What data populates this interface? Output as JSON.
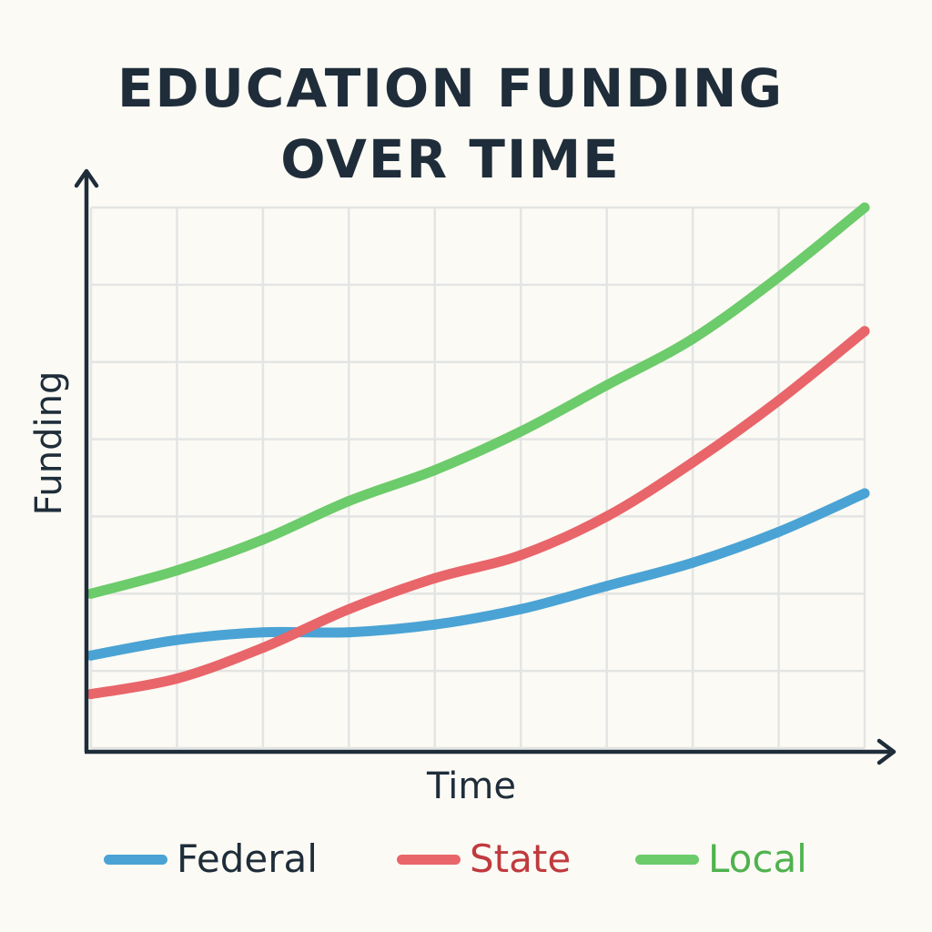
{
  "chart_data": {
    "type": "line",
    "title_lines": [
      "EDUCATION FUNDING",
      "OVER TIME"
    ],
    "xlabel": "Time",
    "ylabel": "Funding",
    "grid": true,
    "legend_position": "bottom",
    "x": [
      0,
      1,
      2,
      3,
      4,
      5,
      6,
      7,
      8,
      9
    ],
    "xlim": [
      0,
      9
    ],
    "ylim": [
      0,
      7
    ],
    "series": [
      {
        "name": "Federal",
        "color": "#4aa3d4",
        "label_color": "#1f2d3a",
        "values": [
          1.2,
          1.4,
          1.5,
          1.5,
          1.6,
          1.8,
          2.1,
          2.4,
          2.8,
          3.3
        ]
      },
      {
        "name": "State",
        "color": "#e8656a",
        "label_color": "#c03a3e",
        "values": [
          0.7,
          0.9,
          1.3,
          1.8,
          2.2,
          2.5,
          3.0,
          3.7,
          4.5,
          5.4
        ]
      },
      {
        "name": "Local",
        "color": "#6ccb6a",
        "label_color": "#4fb24e",
        "values": [
          2.0,
          2.3,
          2.7,
          3.2,
          3.6,
          4.1,
          4.7,
          5.3,
          6.1,
          7.0
        ]
      }
    ]
  },
  "colors": {
    "axis": "#1f2d3a",
    "grid": "#e3e5e4",
    "background": "#fcfaf4"
  }
}
